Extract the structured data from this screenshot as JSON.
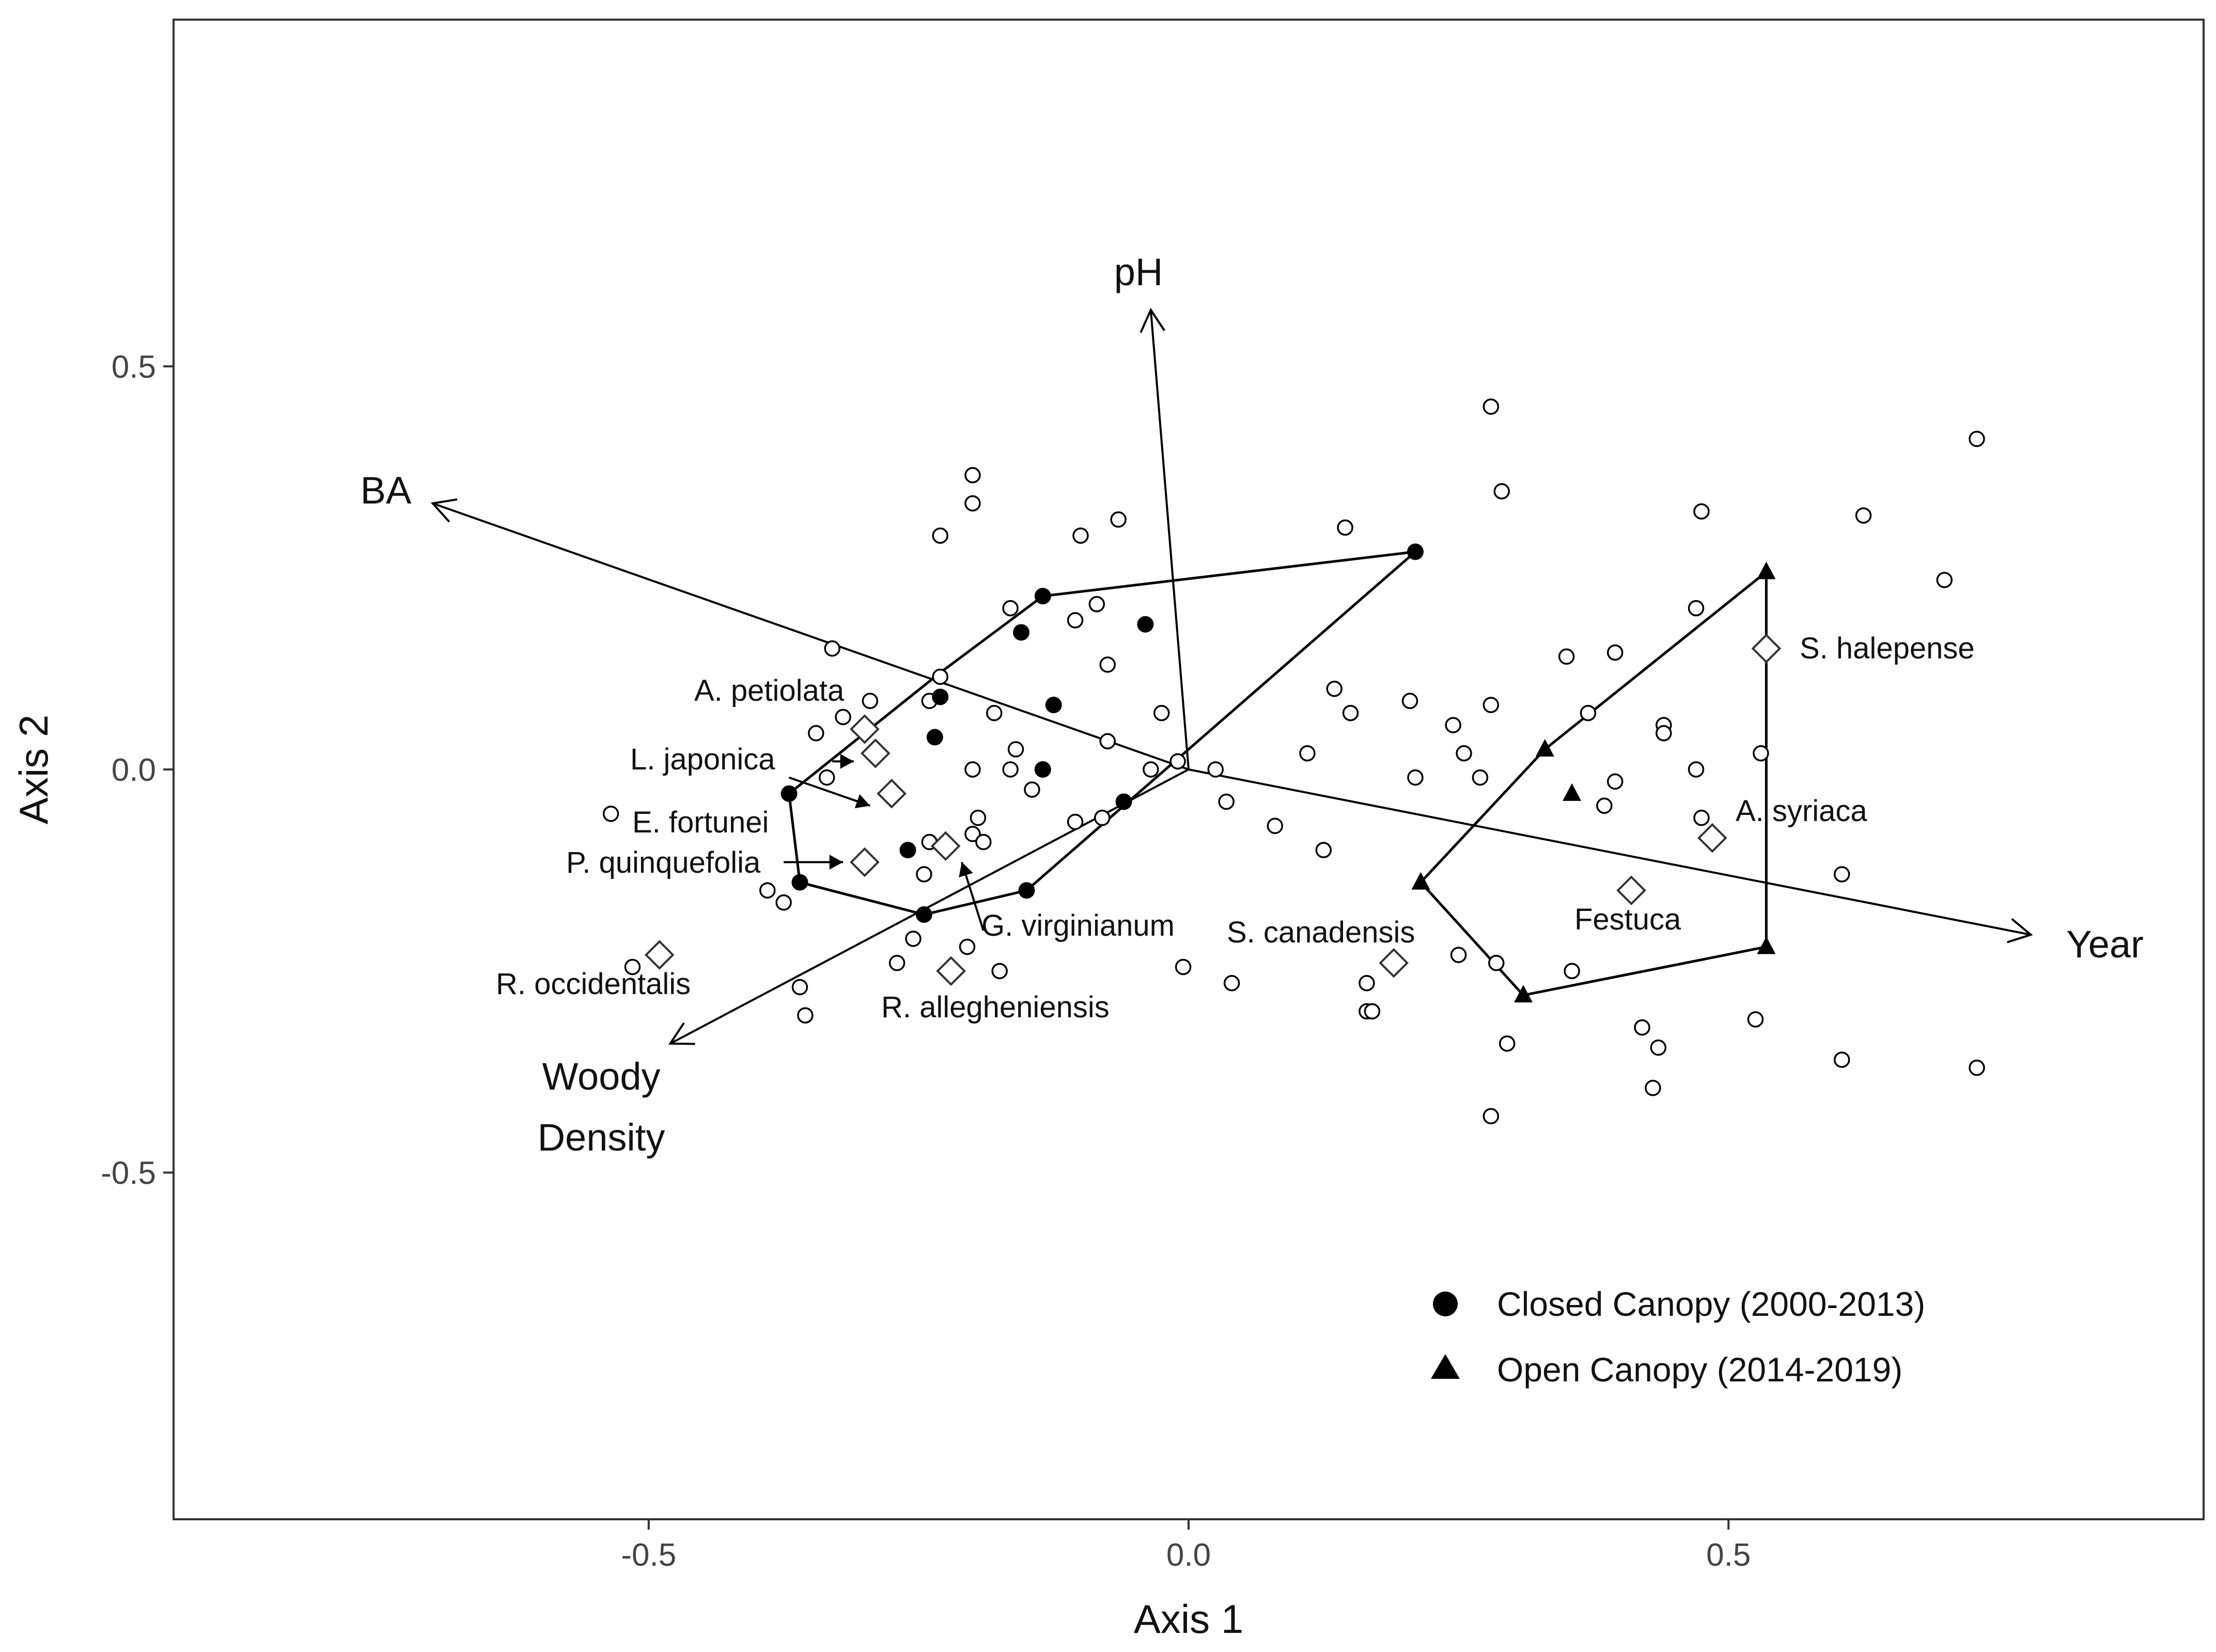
{
  "chart_data": {
    "type": "scatter",
    "title": "",
    "xlabel": "Axis 1",
    "ylabel": "Axis 2",
    "xlim": [
      -0.94,
      0.94
    ],
    "ylim": [
      -0.93,
      0.93
    ],
    "xticks": [
      -0.5,
      0.0,
      0.5
    ],
    "yticks": [
      -0.5,
      0.0,
      0.5
    ],
    "xtick_labels": [
      "-0.5",
      "0.0",
      "0.5"
    ],
    "ytick_labels": [
      "-0.5",
      "0.0",
      "0.5"
    ],
    "grid": false,
    "legend_position": "bottom-right",
    "legend": [
      {
        "label": "Closed Canopy (2000-2013)",
        "marker": "filled-circle"
      },
      {
        "label": "Open Canopy (2014-2019)",
        "marker": "filled-triangle"
      }
    ],
    "closed_canopy_plots": [
      [
        -0.135,
        0.215
      ],
      [
        -0.155,
        0.17
      ],
      [
        -0.04,
        0.18
      ],
      [
        -0.23,
        0.09
      ],
      [
        -0.125,
        0.08
      ],
      [
        -0.235,
        0.04
      ],
      [
        -0.135,
        0.0
      ],
      [
        -0.37,
        -0.03
      ],
      [
        -0.06,
        -0.04
      ],
      [
        -0.26,
        -0.1
      ],
      [
        -0.36,
        -0.14
      ],
      [
        -0.15,
        -0.15
      ],
      [
        -0.245,
        -0.18
      ],
      [
        0.21,
        0.27
      ]
    ],
    "closed_canopy_hull": [
      [
        -0.135,
        0.215
      ],
      [
        0.21,
        0.27
      ],
      [
        -0.15,
        -0.15
      ],
      [
        -0.245,
        -0.18
      ],
      [
        -0.36,
        -0.14
      ],
      [
        -0.37,
        -0.03
      ],
      [
        -0.23,
        0.12
      ]
    ],
    "open_canopy_plots": [
      [
        0.535,
        0.245
      ],
      [
        0.33,
        0.025
      ],
      [
        0.355,
        -0.03
      ],
      [
        0.215,
        -0.14
      ],
      [
        0.31,
        -0.28
      ],
      [
        0.535,
        -0.22
      ]
    ],
    "open_canopy_hull": [
      [
        0.535,
        0.245
      ],
      [
        0.535,
        -0.22
      ],
      [
        0.31,
        -0.28
      ],
      [
        0.215,
        -0.14
      ],
      [
        0.33,
        0.025
      ]
    ],
    "species_points": [
      [
        -0.3,
        0.05,
        "A. petiolata"
      ],
      [
        -0.29,
        0.02,
        "L. japonica"
      ],
      [
        -0.275,
        -0.03,
        "E. fortunei"
      ],
      [
        -0.3,
        -0.115,
        "P. quinquefolia"
      ],
      [
        -0.225,
        -0.095,
        "G. virginianum"
      ],
      [
        -0.49,
        -0.23,
        "R. occidentalis"
      ],
      [
        -0.22,
        -0.25,
        "R. allegheniensis"
      ],
      [
        0.19,
        -0.24,
        "S. canadensis"
      ],
      [
        0.41,
        -0.15,
        "Festuca"
      ],
      [
        0.485,
        -0.085,
        "A. syriaca"
      ],
      [
        0.535,
        0.15,
        "S. halepense"
      ]
    ],
    "species_arrows": [
      {
        "label": "L. japonica",
        "from": [
          -0.33,
          0.01
        ],
        "to": [
          -0.31,
          0.01
        ]
      },
      {
        "label": "E. fortunei",
        "from": [
          -0.37,
          -0.01
        ],
        "to": [
          -0.295,
          -0.045
        ]
      },
      {
        "label": "P. quinquefolia",
        "from": [
          -0.375,
          -0.115
        ],
        "to": [
          -0.32,
          -0.115
        ]
      },
      {
        "label": "G. virginianum",
        "from": [
          -0.19,
          -0.2
        ],
        "to": [
          -0.21,
          -0.115
        ]
      }
    ],
    "environmental_vectors": [
      {
        "label": "pH",
        "x": -0.035,
        "y": 0.57
      },
      {
        "label": "BA",
        "x": -0.7,
        "y": 0.33
      },
      {
        "label": "Year",
        "x": 0.78,
        "y": -0.205
      },
      {
        "label": "Woody Density",
        "x": -0.48,
        "y": -0.34
      }
    ],
    "vector_labels": {
      "pH": "pH",
      "BA": "BA",
      "Year": "Year",
      "woody_line1": "Woody",
      "woody_line2": "Density"
    },
    "other_plots": [
      [
        -0.2,
        0.365
      ],
      [
        -0.2,
        0.33
      ],
      [
        -0.23,
        0.29
      ],
      [
        -0.1,
        0.29
      ],
      [
        -0.065,
        0.31
      ],
      [
        -0.165,
        0.2
      ],
      [
        -0.105,
        0.185
      ],
      [
        -0.085,
        0.205
      ],
      [
        -0.075,
        0.13
      ],
      [
        -0.33,
        0.15
      ],
      [
        -0.23,
        0.115
      ],
      [
        -0.295,
        0.085
      ],
      [
        -0.24,
        0.085
      ],
      [
        -0.18,
        0.07
      ],
      [
        -0.025,
        0.07
      ],
      [
        -0.32,
        0.065
      ],
      [
        -0.16,
        0.025
      ],
      [
        -0.075,
        0.035
      ],
      [
        -0.345,
        0.045
      ],
      [
        -0.335,
        -0.01
      ],
      [
        -0.2,
        0.0
      ],
      [
        -0.165,
        0.0
      ],
      [
        -0.035,
        0.0
      ],
      [
        -0.01,
        0.01
      ],
      [
        0.025,
        0.0
      ],
      [
        -0.145,
        -0.025
      ],
      [
        -0.195,
        -0.06
      ],
      [
        -0.08,
        -0.06
      ],
      [
        -0.105,
        -0.065
      ],
      [
        -0.2,
        -0.08
      ],
      [
        -0.19,
        -0.09
      ],
      [
        -0.24,
        -0.09
      ],
      [
        -0.245,
        -0.13
      ],
      [
        -0.39,
        -0.15
      ],
      [
        -0.375,
        -0.165
      ],
      [
        -0.255,
        -0.21
      ],
      [
        -0.205,
        -0.22
      ],
      [
        -0.27,
        -0.24
      ],
      [
        -0.175,
        -0.25
      ],
      [
        -0.36,
        -0.27
      ],
      [
        -0.355,
        -0.305
      ],
      [
        0.035,
        -0.04
      ],
      [
        0.08,
        -0.07
      ],
      [
        0.125,
        -0.1
      ],
      [
        0.11,
        0.02
      ],
      [
        0.135,
        0.1
      ],
      [
        0.15,
        0.07
      ],
      [
        -0.535,
        -0.055
      ],
      [
        -0.515,
        -0.245
      ],
      [
        -0.005,
        -0.245
      ],
      [
        0.04,
        -0.265
      ],
      [
        0.165,
        -0.265
      ],
      [
        0.165,
        -0.3
      ],
      [
        0.17,
        -0.3
      ],
      [
        0.145,
        0.3
      ],
      [
        0.28,
        0.45
      ],
      [
        0.29,
        0.345
      ],
      [
        0.205,
        0.085
      ],
      [
        0.21,
        -0.01
      ],
      [
        0.245,
        0.055
      ],
      [
        0.255,
        0.02
      ],
      [
        0.27,
        -0.01
      ],
      [
        0.28,
        0.08
      ],
      [
        0.25,
        -0.23
      ],
      [
        0.285,
        -0.24
      ],
      [
        0.295,
        -0.34
      ],
      [
        0.28,
        -0.43
      ],
      [
        0.35,
        0.14
      ],
      [
        0.37,
        0.07
      ],
      [
        0.395,
        0.145
      ],
      [
        0.385,
        -0.045
      ],
      [
        0.395,
        -0.015
      ],
      [
        0.355,
        -0.25
      ],
      [
        0.42,
        -0.32
      ],
      [
        0.435,
        -0.345
      ],
      [
        0.43,
        -0.395
      ],
      [
        0.44,
        0.055
      ],
      [
        0.44,
        0.045
      ],
      [
        0.47,
        0.2
      ],
      [
        0.475,
        0.32
      ],
      [
        0.47,
        0.0
      ],
      [
        0.475,
        -0.06
      ],
      [
        0.53,
        0.02
      ],
      [
        0.525,
        -0.31
      ],
      [
        0.625,
        0.315
      ],
      [
        0.605,
        -0.13
      ],
      [
        0.605,
        -0.36
      ],
      [
        0.73,
        0.41
      ],
      [
        0.7,
        0.235
      ],
      [
        0.73,
        -0.37
      ]
    ]
  }
}
